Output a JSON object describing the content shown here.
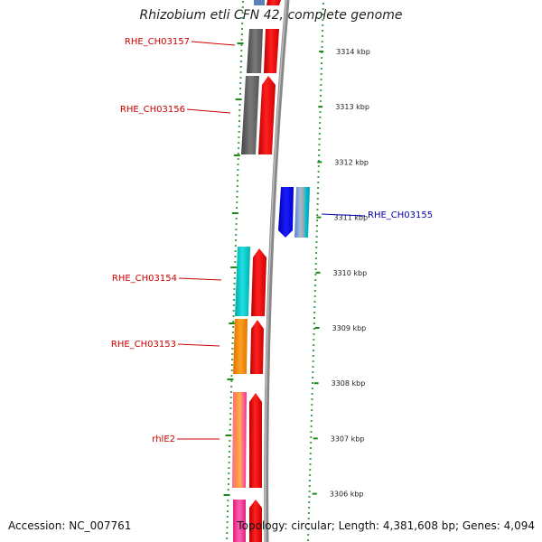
{
  "title": "Rhizobium etli CFN 42, complete genome",
  "accession_text": "Accession: NC_007761",
  "summary_text": "Topology: circular; Length: 4,381,608 bp; Genes: 4,094",
  "ruler": {
    "unit": "kbp",
    "ticks": [
      {
        "kbp": 3314,
        "label": "3314 kbp"
      },
      {
        "kbp": 3313,
        "label": "3313 kbp"
      },
      {
        "kbp": 3312,
        "label": "3312 kbp"
      },
      {
        "kbp": 3311,
        "label": "3311 kbp"
      },
      {
        "kbp": 3310,
        "label": "3310 kbp"
      },
      {
        "kbp": 3309,
        "label": "3309 kbp"
      },
      {
        "kbp": 3308,
        "label": "3308 kbp"
      },
      {
        "kbp": 3307,
        "label": "3307 kbp"
      },
      {
        "kbp": 3306,
        "label": "3306 kbp"
      }
    ]
  },
  "genes": [
    {
      "label": "RHE_CH03157",
      "strand": "reverse",
      "label_color": "#cc0000",
      "cog_colors": [
        "#5a5a5a",
        "#777777"
      ]
    },
    {
      "label": "RHE_CH03156",
      "strand": "reverse",
      "label_color": "#cc0000",
      "cog_colors": [
        "#5a5a5a",
        "#777777"
      ]
    },
    {
      "label": "RHE_CH03155",
      "strand": "forward",
      "label_color": "#0000aa",
      "cog_colors": [
        "#6f93c8",
        "#a8a8a8",
        "#00c8d8"
      ]
    },
    {
      "label": "RHE_CH03154",
      "strand": "reverse",
      "label_color": "#cc0000",
      "cog_colors": [
        "#00c8c8"
      ]
    },
    {
      "label": "RHE_CH03153",
      "strand": "reverse",
      "label_color": "#cc0000",
      "cog_colors": [
        "#ff8c00"
      ]
    },
    {
      "label": "rhlE2",
      "strand": "reverse",
      "label_color": "#cc0000",
      "cog_colors": [
        "#ff7070",
        "#ff9a30",
        "#ff55aa"
      ]
    }
  ],
  "colors": {
    "forward_gene": "#0000ee",
    "reverse_gene": "#ee0000",
    "backbone": "#888888",
    "gc_skew_marks": "#1a8a1a",
    "tick_text": "#222222"
  }
}
